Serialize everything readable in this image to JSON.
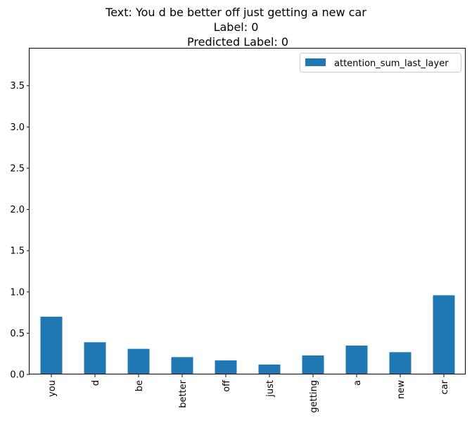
{
  "chart_data": {
    "type": "bar",
    "title_lines": [
      "Text: You d be better off just getting a new car",
      "Label: 0",
      " Predicted Label: 0"
    ],
    "categories": [
      "you",
      "d",
      "be",
      "better",
      "off",
      "just",
      "getting",
      "a",
      "new",
      "car"
    ],
    "series": [
      {
        "name": "attention_sum_last_layer",
        "values": [
          0.7,
          0.39,
          0.31,
          0.21,
          0.17,
          0.12,
          0.23,
          0.35,
          0.27,
          0.96
        ],
        "color": "#1f77b4"
      }
    ],
    "y_ticks": [
      "0.0",
      "0.5",
      "1.0",
      "1.5",
      "2.0",
      "2.5",
      "3.0",
      "3.5"
    ],
    "ylim": [
      0,
      3.95
    ],
    "legend_position": "upper right",
    "grid": false
  }
}
